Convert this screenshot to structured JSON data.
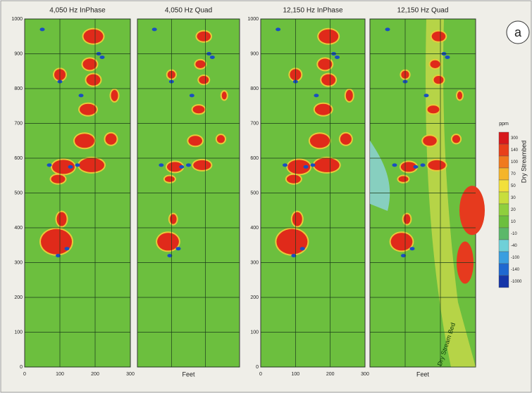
{
  "figure": {
    "panel_label": "a",
    "panels": [
      {
        "title": "4,050 Hz InPhase",
        "x_label": null
      },
      {
        "title": "4,050 Hz Quad",
        "x_label": "Feet"
      },
      {
        "title": "12,150 Hz InPhase",
        "x_label": null
      },
      {
        "title": "12,150 Hz Quad",
        "x_label": "Feet"
      }
    ],
    "ylim": [
      0,
      1000
    ],
    "yticks": [
      0,
      100,
      200,
      300,
      400,
      500,
      600,
      700,
      800,
      900,
      1000
    ],
    "xlim": [
      0,
      300
    ],
    "xticks": [
      0,
      100,
      200,
      300
    ],
    "colorbar": {
      "unit": "ppm",
      "title": "Dry Streambed",
      "labels": [
        "300",
        "140",
        "100",
        "70",
        "50",
        "30",
        "20",
        "10",
        "-10",
        "-40",
        "-100",
        "-140",
        "-1000"
      ]
    },
    "annotation": "Dry Stream Bed"
  }
}
